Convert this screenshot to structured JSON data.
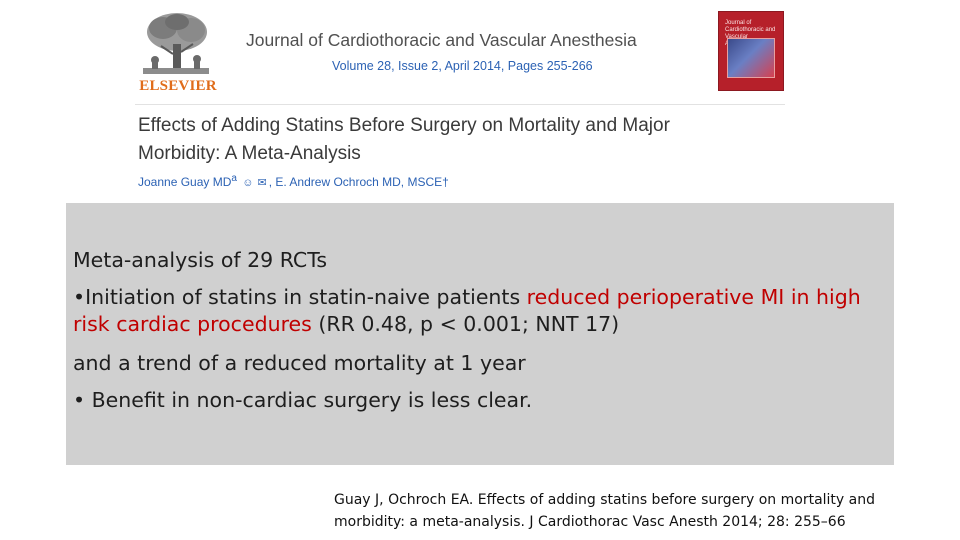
{
  "header": {
    "publisher_logo_text": "ELSEVIER",
    "journal_title": "Journal of Cardiothoracic and Vascular Anesthesia",
    "journal_meta": "Volume 28, Issue 2, April 2014, Pages 255-266",
    "cover_title": "Journal of Cardiothoracic and Vascular Anesthesia"
  },
  "article": {
    "title_line1": "Effects of Adding Statins Before Surgery on Mortality and Major",
    "title_line2": "Morbidity: A Meta-Analysis",
    "author1": "Joanne Guay MD",
    "author1_mark": "a",
    "author2": ", E. Andrew Ochroch MD, MSCE",
    "author2_mark": "†"
  },
  "summary": {
    "line1": "Meta-analysis of 29 RCTs",
    "bullet1_prefix": "•Initiation of statins in statin-naive patients ",
    "bullet1_highlight": "reduced perioperative MI in high risk cardiac procedures",
    "bullet1_suffix": " (RR 0.48, p < 0.001; NNT 17)",
    "line3": "and a trend of a reduced mortality at 1 year",
    "bullet2": "• Benefit in non-cardiac surgery is less clear."
  },
  "citation": {
    "line1": "Guay J, Ochroch EA. Effects of adding statins before surgery on mortality and",
    "line2": "morbidity: a meta-analysis. J Cardiothorac Vasc Anesth 2014; 28: 255–66"
  },
  "colors": {
    "highlight": "#c00000",
    "link_blue": "#2c62b4",
    "box_gray": "#d0d0d0",
    "elsevier_orange": "#e06c1a"
  }
}
